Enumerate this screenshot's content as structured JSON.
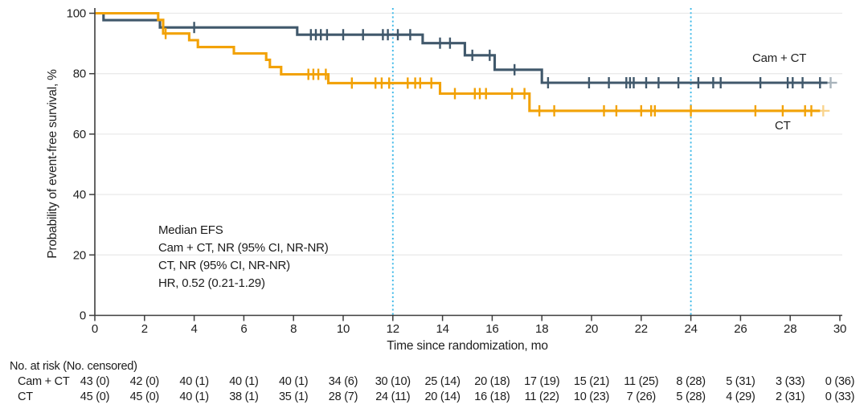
{
  "annotation": {
    "lines": [
      "Median EFS",
      "Cam + CT, NR (95% CI, NR-NR)",
      "CT, NR (95% CI, NR-NR)",
      "HR, 0.52 (0.21-1.29)"
    ]
  },
  "chart_data": {
    "type": "line",
    "subtype": "kaplan-meier-step",
    "title": "",
    "xlabel": "Time since randomization, mo",
    "ylabel": "Probability of event-free survival, %",
    "xlim": [
      0,
      30
    ],
    "ylim": [
      0,
      100
    ],
    "xticks": [
      0,
      2,
      4,
      6,
      8,
      10,
      12,
      14,
      16,
      18,
      20,
      22,
      24,
      26,
      28,
      30
    ],
    "yticks": [
      0,
      20,
      40,
      60,
      80,
      100
    ],
    "grid": "horizontal",
    "legend_position": "inline-right",
    "reference_lines_x": [
      12,
      24
    ],
    "colors": {
      "cam_ct": "#40586B",
      "ct": "#F2A207",
      "reference_line": "#41BAE8",
      "grid": "#EAEAEA",
      "axis": "#3D3D3D",
      "text": "#1F1F1F"
    },
    "series": [
      {
        "name": "Cam + CT",
        "color_key": "cam_ct",
        "steps": [
          [
            0,
            100
          ],
          [
            0.35,
            97.7
          ],
          [
            2.62,
            95.3
          ],
          [
            8.15,
            92.9
          ],
          [
            13.2,
            90.1
          ],
          [
            14.9,
            86.1
          ],
          [
            16.1,
            81.3
          ],
          [
            18.0,
            77.0
          ],
          [
            29.5,
            77.0
          ]
        ],
        "censor_times": [
          4.0,
          8.7,
          8.9,
          9.1,
          9.35,
          10.0,
          10.8,
          11.6,
          11.8,
          12.2,
          12.7,
          13.9,
          14.3,
          15.2,
          15.9,
          16.9,
          18.25,
          19.9,
          20.7,
          21.4,
          21.55,
          21.7,
          22.2,
          22.7,
          23.5,
          24.3,
          24.9,
          25.2,
          26.8,
          27.9,
          28.1,
          28.5,
          29.2
        ],
        "end_censor_time": 29.5
      },
      {
        "name": "CT",
        "color_key": "ct",
        "steps": [
          [
            0,
            100
          ],
          [
            2.55,
            97.8
          ],
          [
            2.75,
            93.3
          ],
          [
            3.8,
            91.1
          ],
          [
            4.15,
            88.8
          ],
          [
            5.6,
            86.7
          ],
          [
            6.9,
            84.6
          ],
          [
            7.05,
            82.2
          ],
          [
            7.5,
            79.8
          ],
          [
            9.4,
            76.9
          ],
          [
            13.9,
            73.4
          ],
          [
            17.5,
            67.7
          ],
          [
            29.2,
            67.7
          ]
        ],
        "censor_times": [
          2.85,
          8.6,
          8.8,
          9.0,
          9.3,
          10.35,
          11.3,
          11.55,
          11.85,
          12.6,
          12.9,
          13.1,
          13.55,
          14.5,
          15.3,
          15.5,
          15.75,
          16.8,
          17.3,
          17.9,
          18.5,
          20.5,
          21.0,
          22.0,
          22.4,
          22.55,
          24.0,
          26.6,
          27.7,
          28.6,
          28.85
        ],
        "end_censor_time": 29.2
      }
    ],
    "risk_table": {
      "header": "No. at risk (No. censored)",
      "times": [
        0,
        2,
        4,
        6,
        8,
        10,
        12,
        14,
        16,
        18,
        20,
        22,
        24,
        26,
        28,
        30
      ],
      "rows": [
        {
          "label": "Cam + CT",
          "values": [
            "43 (0)",
            "42 (0)",
            "40 (1)",
            "40 (1)",
            "40 (1)",
            "34 (6)",
            "30 (10)",
            "25 (14)",
            "20 (18)",
            "17 (19)",
            "15 (21)",
            "11 (25)",
            "8 (28)",
            "5 (31)",
            "3 (33)",
            "0 (36)"
          ]
        },
        {
          "label": "CT",
          "values": [
            "45 (0)",
            "45 (0)",
            "40 (1)",
            "38 (1)",
            "35 (1)",
            "28 (7)",
            "24 (11)",
            "20 (14)",
            "16 (18)",
            "11 (22)",
            "10 (23)",
            "7 (26)",
            "5 (28)",
            "4 (29)",
            "2 (31)",
            "0 (33)"
          ]
        }
      ]
    }
  }
}
